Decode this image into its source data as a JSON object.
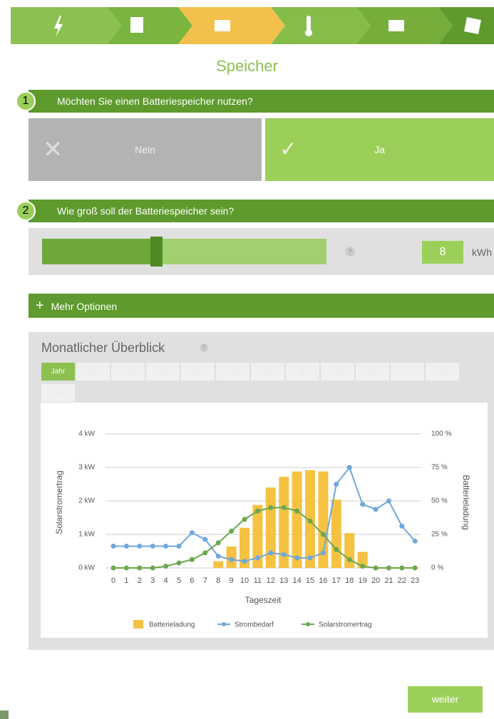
{
  "header": {
    "title": "Speicher"
  },
  "question1": {
    "number": "1",
    "text": "Möchten Sie einen Batteriespeicher nutzen?",
    "options": [
      "Nein",
      "Ja"
    ]
  },
  "question2": {
    "number": "2",
    "text": "Wie groß soll der Batteriespeicher sein?",
    "help": "?",
    "value": "8",
    "unit": "kWh"
  },
  "more_options": "Mehr Optionen",
  "overview": {
    "title": "Monatlicher Überblick",
    "help": "?",
    "tabs": [
      "Jahr",
      "Jan",
      "Feb",
      "Mär",
      "Apr",
      "Mai",
      "Jun",
      "Jul",
      "Aug",
      "Sep",
      "Okt",
      "Nov",
      "Dez"
    ]
  },
  "chart_data": {
    "type": "bar_line",
    "x_label": "Tageszeit",
    "y_label": "Solarstromertrag",
    "y2_label": "Batterieladung",
    "categories": [
      "0",
      "1",
      "2",
      "3",
      "4",
      "5",
      "6",
      "7",
      "8",
      "9",
      "10",
      "11",
      "12",
      "13",
      "14",
      "15",
      "16",
      "17",
      "18",
      "19",
      "20",
      "21",
      "22",
      "23"
    ],
    "ylim": [
      0,
      4
    ],
    "yticks": [
      {
        "value": 0,
        "label": "0 kW"
      },
      {
        "value": 1,
        "label": "1 kW"
      },
      {
        "value": 2,
        "label": "2 kW"
      },
      {
        "value": 3,
        "label": "3 kW"
      },
      {
        "value": 4,
        "label": "4 kW"
      }
    ],
    "y2lim": [
      0,
      100
    ],
    "y2ticks": [
      {
        "value": 0,
        "label": "0 %"
      },
      {
        "value": 25,
        "label": "25 %"
      },
      {
        "value": 50,
        "label": "50 %"
      },
      {
        "value": 75,
        "label": "75 %"
      },
      {
        "value": 100,
        "label": "100 %"
      }
    ],
    "grid": true,
    "series": [
      {
        "name": "Batterieladung",
        "type": "bar",
        "axis": "y2",
        "color": "#f5c242",
        "values": [
          0,
          0,
          0,
          0,
          0,
          0,
          0,
          0,
          5,
          16,
          30,
          47,
          60,
          68,
          72,
          73,
          72,
          51,
          26,
          12,
          0,
          0,
          0,
          0
        ]
      },
      {
        "name": "Strombedarf",
        "type": "line",
        "color": "#6fa8dc",
        "values": [
          0.65,
          0.65,
          0.65,
          0.65,
          0.65,
          0.65,
          1.05,
          0.85,
          0.35,
          0.25,
          0.2,
          0.3,
          0.45,
          0.4,
          0.3,
          0.3,
          0.45,
          2.5,
          3.0,
          1.9,
          1.75,
          2.0,
          1.25,
          0.8
        ]
      },
      {
        "name": "Solarstromertrag",
        "type": "line",
        "color": "#6aa84f",
        "values": [
          0,
          0,
          0,
          0,
          0.05,
          0.15,
          0.25,
          0.45,
          0.75,
          1.1,
          1.45,
          1.7,
          1.8,
          1.8,
          1.7,
          1.4,
          1.0,
          0.55,
          0.25,
          0.05,
          0,
          0,
          0,
          0
        ]
      }
    ]
  },
  "next": "weiter"
}
